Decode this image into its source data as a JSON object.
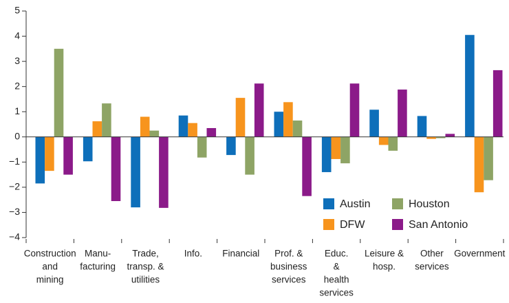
{
  "chart_data": {
    "type": "bar",
    "categories": [
      [
        "Construction",
        "and",
        "mining"
      ],
      [
        "Manu-",
        "facturing"
      ],
      [
        "Trade,",
        "transp. &",
        "utilities"
      ],
      [
        "Info."
      ],
      [
        "Financial"
      ],
      [
        "Prof. &",
        "business",
        "services"
      ],
      [
        "Educ.",
        "&",
        "health",
        "services"
      ],
      [
        "Leisure &",
        "hosp."
      ],
      [
        "Other",
        "services"
      ],
      [
        "Government"
      ]
    ],
    "series": [
      {
        "name": "Austin",
        "color": "#0e6fba",
        "values": [
          -1.85,
          -0.97,
          -2.8,
          0.85,
          -0.72,
          1.0,
          -1.4,
          1.08,
          0.83,
          4.05
        ]
      },
      {
        "name": "DFW",
        "color": "#f7941d",
        "values": [
          -1.35,
          0.62,
          0.8,
          0.55,
          1.55,
          1.38,
          -0.88,
          -0.32,
          -0.08,
          -2.2
        ]
      },
      {
        "name": "Houston",
        "color": "#8ea465",
        "values": [
          3.5,
          1.33,
          0.25,
          -0.82,
          -1.5,
          0.65,
          -1.05,
          -0.55,
          -0.05,
          -1.72
        ]
      },
      {
        "name": "San Antonio",
        "color": "#8b1a89",
        "values": [
          -1.5,
          -2.55,
          -2.82,
          0.35,
          2.12,
          -2.35,
          2.12,
          1.88,
          0.12,
          2.65
        ]
      }
    ],
    "ylim": [
      -4,
      5
    ],
    "yticks": [
      {
        "value": -4,
        "label": "−4"
      },
      {
        "value": -3,
        "label": "−3"
      },
      {
        "value": -2,
        "label": "−2"
      },
      {
        "value": -1,
        "label": "−1"
      },
      0,
      1,
      2,
      3,
      4,
      5
    ],
    "grid": false,
    "legend": "lower right"
  }
}
